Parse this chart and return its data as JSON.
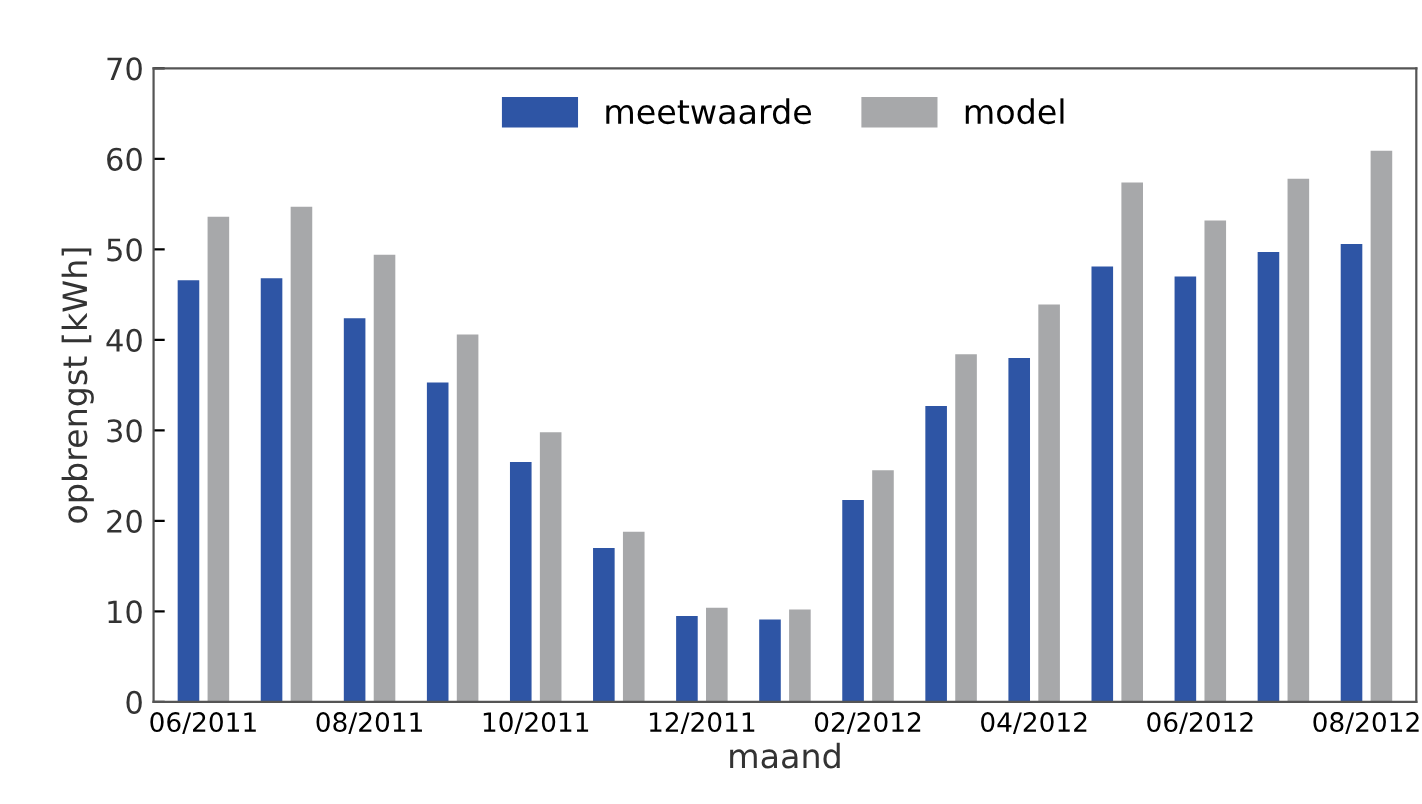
{
  "chart_data": {
    "type": "bar",
    "xlabel": "maand",
    "ylabel": "opbrengst [kWh]",
    "categories": [
      "06/2011",
      null,
      "08/2011",
      null,
      "10/2011",
      null,
      "12/2011",
      null,
      "02/2012",
      null,
      "04/2012",
      null,
      "06/2012",
      null,
      "08/2012"
    ],
    "series": [
      {
        "name": "meetwaarde",
        "color": "#2e55a5",
        "values": [
          46.6,
          46.8,
          42.4,
          35.3,
          26.5,
          17.0,
          9.5,
          9.1,
          22.3,
          32.7,
          38.0,
          48.1,
          47.0,
          49.7,
          50.6
        ]
      },
      {
        "name": "model",
        "color": "#a7a8aa",
        "values": [
          53.6,
          54.7,
          49.4,
          40.6,
          29.8,
          18.8,
          10.4,
          10.2,
          25.6,
          38.4,
          43.9,
          57.4,
          53.2,
          57.8,
          60.9
        ]
      }
    ],
    "ylim": [
      0,
      70
    ],
    "yticks": [
      0,
      10,
      20,
      30,
      40,
      50,
      60,
      70
    ],
    "grid": false,
    "legend": "top"
  }
}
